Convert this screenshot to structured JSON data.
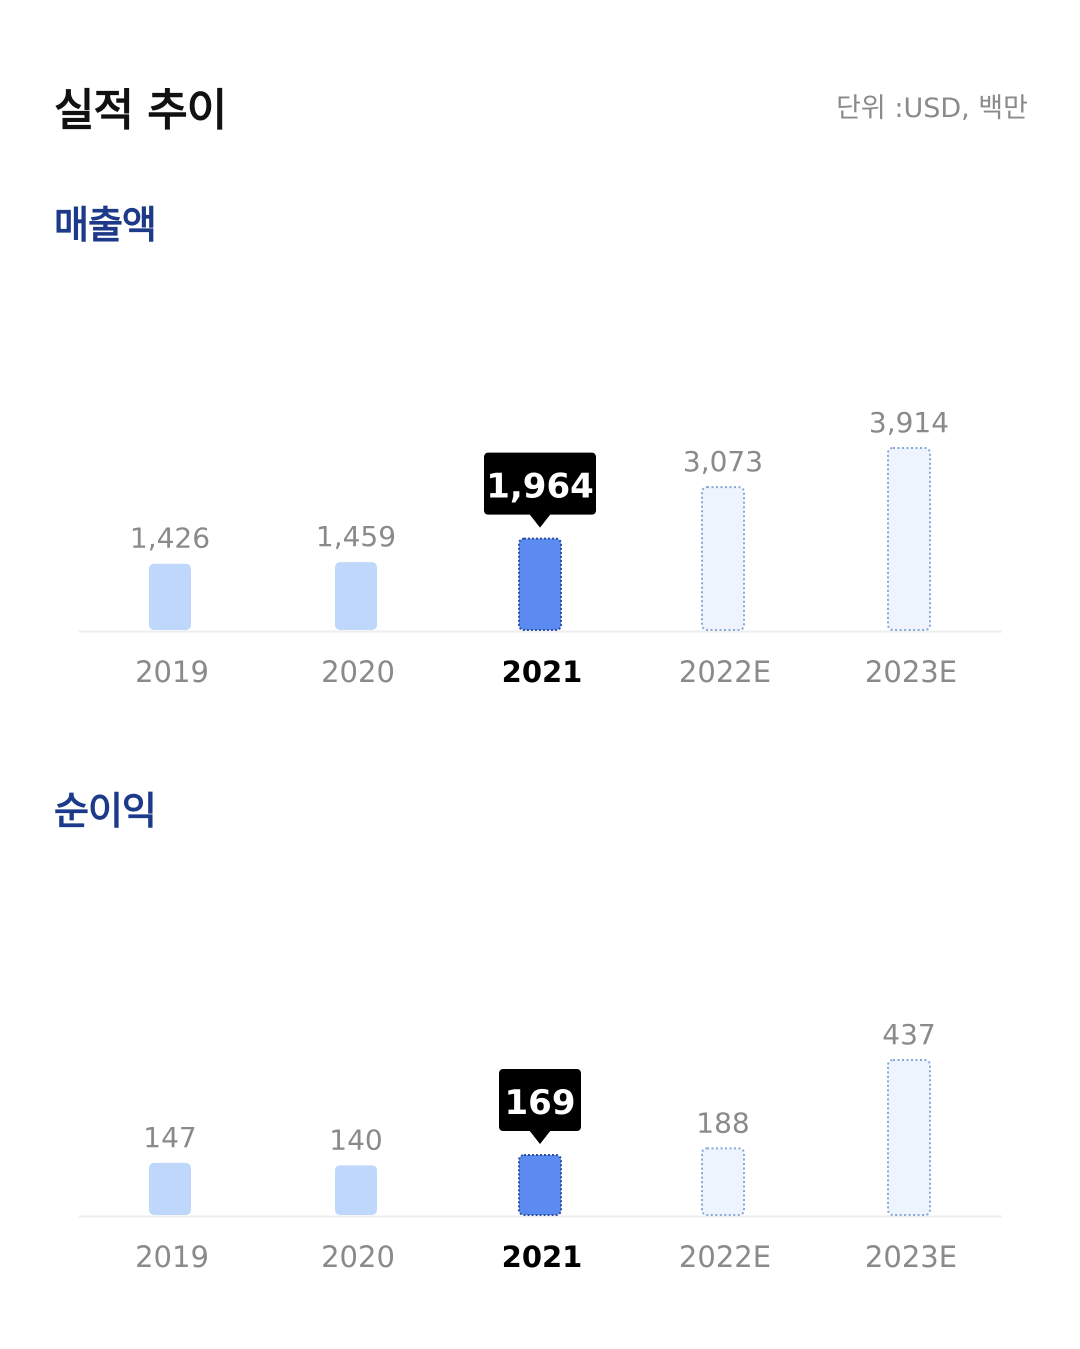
{
  "header": {
    "title": "실적 추이",
    "unit": "단위 :USD, 백만"
  },
  "sections": {
    "revenue": {
      "title": "매출액"
    },
    "net_income": {
      "title": "순이익"
    }
  },
  "colors": {
    "actual_bar": "#bfd7fb",
    "highlight_bar": "#5b8bf0",
    "estimate_fill": "#eef4fd",
    "estimate_stroke": "#86a9d8",
    "value_label": "#8a8a8a",
    "tooltip_bg": "#000000",
    "section_title": "#1d3a8a"
  },
  "chart_data": [
    {
      "type": "bar",
      "title": "매출액",
      "categories": [
        "2019",
        "2020",
        "2021",
        "2022E",
        "2023E"
      ],
      "values": [
        1426,
        1459,
        1964,
        3073,
        3914
      ],
      "value_labels": [
        "1,426",
        "1,459",
        "1,964",
        "3,073",
        "3,914"
      ],
      "highlight_index": 2,
      "estimate_indices": [
        3,
        4
      ],
      "ylim": [
        0,
        3914
      ]
    },
    {
      "type": "bar",
      "title": "순이익",
      "categories": [
        "2019",
        "2020",
        "2021",
        "2022E",
        "2023E"
      ],
      "values": [
        147,
        140,
        169,
        188,
        437
      ],
      "value_labels": [
        "147",
        "140",
        "169",
        "188",
        "437"
      ],
      "highlight_index": 2,
      "estimate_indices": [
        3,
        4
      ],
      "ylim": [
        0,
        437
      ]
    }
  ]
}
